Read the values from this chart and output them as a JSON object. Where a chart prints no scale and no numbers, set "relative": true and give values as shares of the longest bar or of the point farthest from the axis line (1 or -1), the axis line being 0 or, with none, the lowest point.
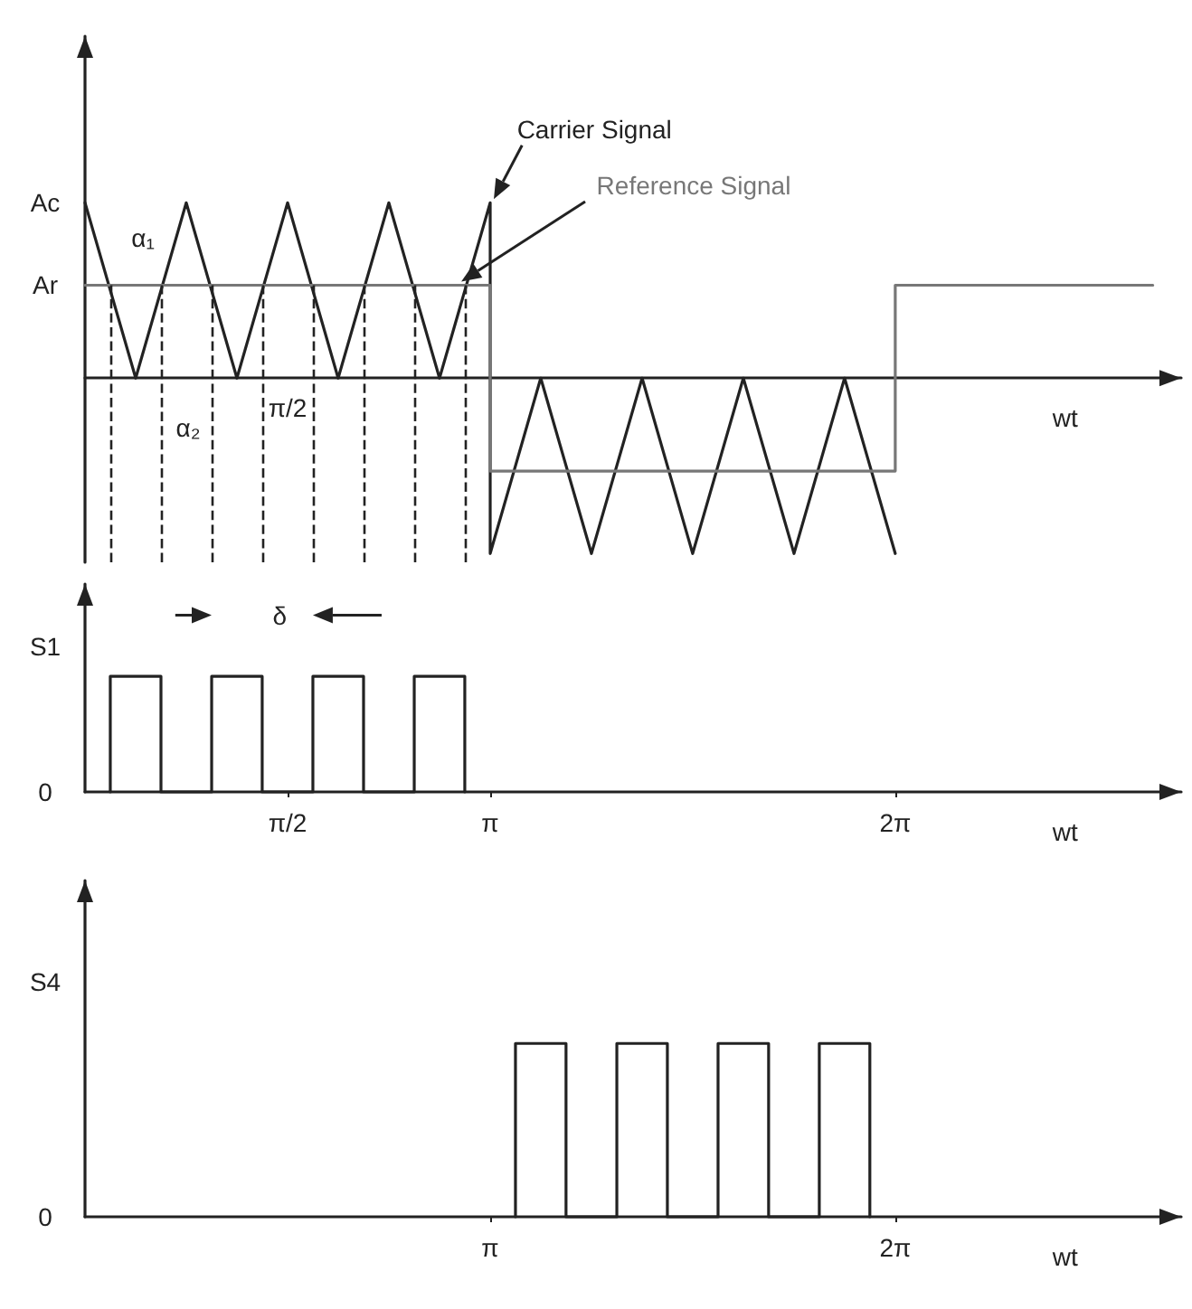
{
  "chart_data": [
    {
      "type": "line",
      "relative": true,
      "xlabel": "wt",
      "xlim": [
        0,
        8.5
      ],
      "grid": false,
      "legend": false,
      "marker": "none",
      "line_style": "solid",
      "series": [
        {
          "name": "Carrier Signal",
          "color": "#222222",
          "x": [
            0,
            0.393,
            0.785,
            1.178,
            1.571,
            1.963,
            2.356,
            2.749,
            3.142,
            3.142,
            3.534,
            3.927,
            4.32,
            4.712,
            5.105,
            5.498,
            5.89,
            6.283
          ],
          "values": [
            1,
            0,
            1,
            0,
            1,
            0,
            1,
            0,
            1,
            -1,
            0,
            -1,
            0,
            -1,
            0,
            -1,
            0,
            -1
          ]
        },
        {
          "name": "Reference Signal",
          "color": "#777777",
          "x": [
            0,
            3.142,
            3.142,
            6.283,
            6.283,
            8.28
          ],
          "values": [
            0.53,
            0.53,
            -0.53,
            -0.53,
            0.53,
            0.53
          ]
        }
      ],
      "ref_lines": [
        {
          "axis": "x",
          "value": 0.196,
          "color": "#222222",
          "line_style": "dashed"
        },
        {
          "axis": "x",
          "value": 0.589,
          "color": "#222222",
          "line_style": "dashed"
        },
        {
          "axis": "x",
          "value": 0.982,
          "color": "#222222",
          "line_style": "dashed"
        },
        {
          "axis": "x",
          "value": 1.374,
          "color": "#222222",
          "line_style": "dashed"
        },
        {
          "axis": "x",
          "value": 1.767,
          "color": "#222222",
          "line_style": "dashed"
        },
        {
          "axis": "x",
          "value": 2.16,
          "color": "#222222",
          "line_style": "dashed"
        },
        {
          "axis": "x",
          "value": 2.553,
          "color": "#222222",
          "line_style": "dashed"
        },
        {
          "axis": "x",
          "value": 2.945,
          "color": "#222222",
          "line_style": "dashed"
        }
      ],
      "annotations": [
        "Ac",
        "Ar",
        "π/2",
        "α₁",
        "α₂"
      ]
    },
    {
      "type": "line",
      "relative": true,
      "ylabel": "S1",
      "xlabel": "wt",
      "xlim": [
        0,
        8.5
      ],
      "xticks": [
        {
          "value": 1.571,
          "label": "π/2"
        },
        {
          "value": 3.142,
          "label": "π"
        },
        {
          "value": 6.283,
          "label": "2π"
        }
      ],
      "grid": false,
      "legend": false,
      "marker": "none",
      "line_style": "solid",
      "series": [
        {
          "color": "#222222",
          "x": [
            0.196,
            0.196,
            0.589,
            0.589,
            0.982,
            0.982,
            1.374,
            1.374,
            1.767,
            1.767,
            2.16,
            2.16,
            2.553,
            2.553,
            2.945,
            2.945
          ],
          "values": [
            0,
            1,
            1,
            0,
            0,
            1,
            1,
            0,
            0,
            1,
            1,
            0,
            0,
            1,
            1,
            0
          ]
        }
      ],
      "annotations": [
        "δ",
        "0"
      ]
    },
    {
      "type": "line",
      "relative": true,
      "ylabel": "S4",
      "xlabel": "wt",
      "xlim": [
        0,
        8.5
      ],
      "xticks": [
        {
          "value": 3.142,
          "label": "π"
        },
        {
          "value": 6.283,
          "label": "2π"
        }
      ],
      "grid": false,
      "legend": false,
      "marker": "none",
      "line_style": "solid",
      "series": [
        {
          "color": "#222222",
          "x": [
            3.338,
            3.338,
            3.73,
            3.73,
            4.124,
            4.124,
            4.516,
            4.516,
            4.909,
            4.909,
            5.301,
            5.301,
            5.694,
            5.694,
            6.086,
            6.086
          ],
          "values": [
            0,
            1,
            1,
            0,
            0,
            1,
            1,
            0,
            0,
            1,
            1,
            0,
            0,
            1,
            1,
            0
          ]
        }
      ],
      "annotations": [
        "0"
      ]
    }
  ]
}
